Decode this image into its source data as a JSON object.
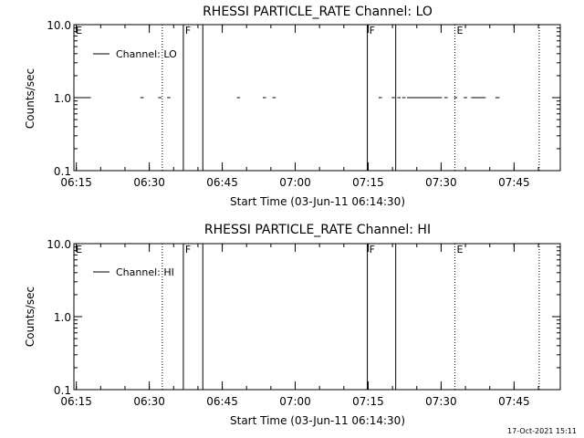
{
  "chart_data": [
    {
      "type": "line",
      "title": "RHESSI PARTICLE_RATE Channel: LO",
      "xlabel": "Start Time (03-Jun-11 06:14:30)",
      "ylabel": "Counts/sec",
      "yscale": "log",
      "ylim": [
        0.1,
        10.0
      ],
      "xlim": [
        "06:14:30",
        "07:54:30"
      ],
      "x_ticks": [
        "06:15",
        "06:30",
        "06:45",
        "07:00",
        "07:15",
        "07:30",
        "07:45"
      ],
      "y_ticks": [
        "0.1",
        "1.0",
        "10.0"
      ],
      "legend": {
        "entries": [
          "Channel: LO"
        ],
        "position": "top-left"
      },
      "series": [
        {
          "name": "Channel: LO",
          "segments": [
            [
              "06:14:30",
              "06:18:00",
              1.0
            ],
            [
              "06:28:10",
              "06:28:50",
              1.0
            ],
            [
              "06:31:50",
              "06:32:30",
              1.0
            ],
            [
              "06:33:40",
              "06:34:20",
              1.0
            ],
            [
              "06:48:00",
              "06:48:40",
              1.0
            ],
            [
              "06:53:20",
              "06:54:00",
              1.0
            ],
            [
              "06:55:20",
              "06:56:00",
              1.0
            ],
            [
              "07:17:10",
              "07:17:50",
              1.0
            ],
            [
              "07:19:50",
              "07:20:30",
              1.0
            ],
            [
              "07:21:00",
              "07:21:40",
              1.0
            ],
            [
              "07:22:00",
              "07:22:40",
              1.0
            ],
            [
              "07:23:00",
              "07:30:10",
              1.0
            ],
            [
              "07:30:40",
              "07:31:20",
              1.0
            ],
            [
              "07:32:40",
              "07:33:20",
              1.0
            ],
            [
              "07:34:40",
              "07:35:20",
              1.0
            ],
            [
              "07:36:10",
              "07:39:10",
              1.0
            ],
            [
              "07:41:10",
              "07:42:00",
              1.0
            ]
          ]
        }
      ],
      "markers": [
        {
          "time": "06:14:30",
          "style": "none",
          "label": "E"
        },
        {
          "time": "06:32:40",
          "style": "dotted",
          "label": ""
        },
        {
          "time": "06:37:00",
          "style": "solid",
          "label": "F"
        },
        {
          "time": "06:41:00",
          "style": "solid",
          "label": ""
        },
        {
          "time": "07:14:50",
          "style": "solid",
          "label": "F"
        },
        {
          "time": "07:20:40",
          "style": "solid",
          "label": ""
        },
        {
          "time": "07:32:50",
          "style": "dotted",
          "label": "E"
        },
        {
          "time": "07:50:10",
          "style": "dotted",
          "label": ""
        }
      ]
    },
    {
      "type": "line",
      "title": "RHESSI PARTICLE_RATE Channel: HI",
      "xlabel": "Start Time (03-Jun-11 06:14:30)",
      "ylabel": "Counts/sec",
      "yscale": "log",
      "ylim": [
        0.1,
        10.0
      ],
      "xlim": [
        "06:14:30",
        "07:54:30"
      ],
      "x_ticks": [
        "06:15",
        "06:30",
        "06:45",
        "07:00",
        "07:15",
        "07:30",
        "07:45"
      ],
      "y_ticks": [
        "0.1",
        "1.0",
        "10.0"
      ],
      "legend": {
        "entries": [
          "Channel: HI"
        ],
        "position": "top-left"
      },
      "series": [
        {
          "name": "Channel: HI",
          "segments": []
        }
      ],
      "markers": [
        {
          "time": "06:14:30",
          "style": "none",
          "label": "E"
        },
        {
          "time": "06:32:40",
          "style": "dotted",
          "label": ""
        },
        {
          "time": "06:37:00",
          "style": "solid",
          "label": "F"
        },
        {
          "time": "06:41:00",
          "style": "solid",
          "label": ""
        },
        {
          "time": "07:14:50",
          "style": "solid",
          "label": "F"
        },
        {
          "time": "07:20:40",
          "style": "solid",
          "label": ""
        },
        {
          "time": "07:32:50",
          "style": "dotted",
          "label": "E"
        },
        {
          "time": "07:50:10",
          "style": "dotted",
          "label": ""
        }
      ]
    }
  ],
  "footer": {
    "timestamp": "17-Oct-2021 15:11"
  }
}
